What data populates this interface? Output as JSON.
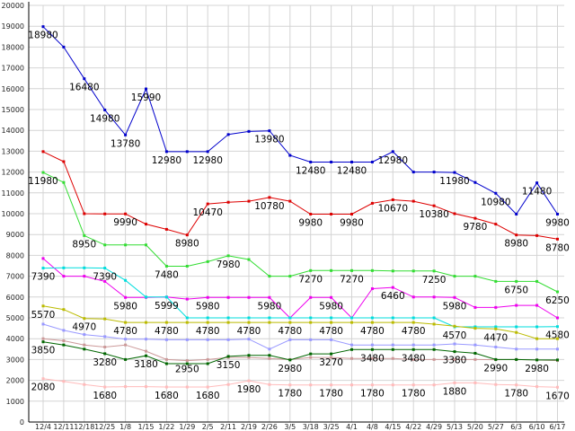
{
  "chart_data": {
    "type": "line",
    "title": "",
    "xlabel": "",
    "ylabel": "",
    "ylim": [
      0,
      20000
    ],
    "y_ticks": [
      0,
      1000,
      2000,
      3000,
      4000,
      5000,
      6000,
      7000,
      8000,
      9000,
      10000,
      11000,
      12000,
      13000,
      14000,
      15000,
      16000,
      17000,
      18000,
      19000,
      20000
    ],
    "grid": true,
    "categories": [
      "12/4",
      "12/11",
      "12/18",
      "12/25",
      "1/8",
      "1/15",
      "1/22",
      "1/29",
      "2/5",
      "2/11",
      "2/19",
      "2/26",
      "3/5",
      "3/18",
      "3/25",
      "4/1",
      "4/8",
      "4/15",
      "4/22",
      "4/29",
      "5/13",
      "5/20",
      "5/27",
      "6/3",
      "6/10",
      "6/17"
    ],
    "series": [
      {
        "color": "#0000cc",
        "values": [
          18980,
          18000,
          16480,
          14980,
          13780,
          15990,
          12980,
          12980,
          12980,
          13800,
          13950,
          13980,
          12800,
          12480,
          12480,
          12480,
          12480,
          12980,
          12000,
          12000,
          11980,
          11500,
          10980,
          9980,
          11480,
          9980
        ]
      },
      {
        "color": "#dd0000",
        "values": [
          12980,
          12500,
          10000,
          9990,
          9990,
          9500,
          9250,
          8980,
          10470,
          10550,
          10600,
          10780,
          10600,
          9980,
          9980,
          9980,
          10500,
          10670,
          10600,
          10380,
          10000,
          9780,
          9500,
          8980,
          8950,
          8780
        ]
      },
      {
        "color": "#33dd33",
        "values": [
          11980,
          11500,
          8950,
          8500,
          8500,
          8500,
          7480,
          7480,
          7700,
          7980,
          7800,
          7000,
          7000,
          7270,
          7270,
          7270,
          7270,
          7250,
          7250,
          7250,
          7000,
          7000,
          6750,
          6750,
          6750,
          6250
        ]
      },
      {
        "color": "#ee00ee",
        "values": [
          7850,
          7000,
          7000,
          6750,
          5980,
          5980,
          5999,
          5900,
          5980,
          5980,
          5980,
          5980,
          5000,
          5980,
          5980,
          5000,
          6400,
          6460,
          6000,
          6000,
          5980,
          5500,
          5500,
          5600,
          5600,
          5000
        ]
      },
      {
        "color": "#00dddd",
        "values": [
          7390,
          7400,
          7400,
          7390,
          6800,
          6000,
          5999,
          5000,
          5000,
          5000,
          5000,
          5000,
          5000,
          5000,
          5000,
          5000,
          5000,
          5000,
          5000,
          5000,
          4570,
          4570,
          4570,
          4570,
          4570,
          4580
        ]
      },
      {
        "color": "#bbbb00",
        "values": [
          5570,
          5400,
          4970,
          4950,
          4780,
          4780,
          4780,
          4780,
          4780,
          4780,
          4780,
          4780,
          4780,
          4780,
          4780,
          4780,
          4780,
          4780,
          4780,
          4700,
          4600,
          4500,
          4470,
          4300,
          4000,
          4000
        ]
      },
      {
        "color": "#9999ff",
        "values": [
          4700,
          4400,
          4200,
          4100,
          3980,
          3980,
          3950,
          3950,
          3950,
          3950,
          3980,
          3500,
          3950,
          3950,
          3950,
          3700,
          3700,
          3700,
          3700,
          3700,
          3750,
          3700,
          3600,
          3500,
          3500,
          3500
        ]
      },
      {
        "color": "#cc9999",
        "values": [
          4000,
          3900,
          3700,
          3600,
          3700,
          3400,
          3000,
          2950,
          3000,
          3100,
          3100,
          3050,
          3000,
          3100,
          3100,
          3050,
          3050,
          3050,
          3000,
          3000,
          3000,
          3000,
          2990,
          3000,
          2980,
          2950
        ]
      },
      {
        "color": "#006600",
        "values": [
          3850,
          3700,
          3500,
          3280,
          3000,
          3180,
          2800,
          2800,
          2800,
          3150,
          3200,
          3200,
          2980,
          3270,
          3270,
          3480,
          3480,
          3480,
          3480,
          3480,
          3380,
          3300,
          3000,
          3000,
          2980,
          2980
        ]
      },
      {
        "color": "#ffbbbb",
        "values": [
          2080,
          1950,
          1800,
          1680,
          1700,
          1700,
          1680,
          1680,
          1680,
          1800,
          1980,
          1800,
          1780,
          1780,
          1780,
          1780,
          1780,
          1780,
          1780,
          1780,
          1880,
          1880,
          1800,
          1780,
          1700,
          1670
        ]
      }
    ],
    "data_labels": [
      {
        "text": "18980",
        "x": 0,
        "value": 18980
      },
      {
        "text": "16480",
        "x": 2,
        "value": 16480
      },
      {
        "text": "14980",
        "x": 3,
        "value": 14980
      },
      {
        "text": "13780",
        "x": 4,
        "value": 13780
      },
      {
        "text": "15990",
        "x": 5,
        "value": 15990
      },
      {
        "text": "12980",
        "x": 6,
        "value": 12980
      },
      {
        "text": "12980",
        "x": 8,
        "value": 12980
      },
      {
        "text": "13980",
        "x": 11,
        "value": 13980
      },
      {
        "text": "12480",
        "x": 13,
        "value": 12480
      },
      {
        "text": "12480",
        "x": 15,
        "value": 12480
      },
      {
        "text": "12980",
        "x": 17,
        "value": 12980
      },
      {
        "text": "11980",
        "x": 20,
        "value": 11980
      },
      {
        "text": "10980",
        "x": 22,
        "value": 10980
      },
      {
        "text": "11480",
        "x": 24,
        "value": 11480
      },
      {
        "text": "9980",
        "x": 25,
        "value": 9980
      },
      {
        "text": "11980",
        "x": 0,
        "value": 11980
      },
      {
        "text": "9990",
        "x": 4,
        "value": 9990
      },
      {
        "text": "8980",
        "x": 7,
        "value": 8980
      },
      {
        "text": "10470",
        "x": 8,
        "value": 10470
      },
      {
        "text": "10780",
        "x": 11,
        "value": 10780
      },
      {
        "text": "9980",
        "x": 13,
        "value": 9980
      },
      {
        "text": "9980",
        "x": 15,
        "value": 9980
      },
      {
        "text": "10670",
        "x": 17,
        "value": 10670
      },
      {
        "text": "10380",
        "x": 19,
        "value": 10380
      },
      {
        "text": "9780",
        "x": 21,
        "value": 9780
      },
      {
        "text": "8980",
        "x": 23,
        "value": 8980
      },
      {
        "text": "8780",
        "x": 25,
        "value": 8780
      },
      {
        "text": "8950",
        "x": 2,
        "value": 8950
      },
      {
        "text": "7480",
        "x": 6,
        "value": 7480
      },
      {
        "text": "7980",
        "x": 9,
        "value": 7980
      },
      {
        "text": "7270",
        "x": 13,
        "value": 7270
      },
      {
        "text": "7270",
        "x": 15,
        "value": 7270
      },
      {
        "text": "7250",
        "x": 19,
        "value": 7250
      },
      {
        "text": "6750",
        "x": 23,
        "value": 6750
      },
      {
        "text": "6250",
        "x": 25,
        "value": 6250
      },
      {
        "text": "7390",
        "x": 0,
        "value": 7390
      },
      {
        "text": "7390",
        "x": 3,
        "value": 7390
      },
      {
        "text": "5980",
        "x": 4,
        "value": 5980
      },
      {
        "text": "5999",
        "x": 6,
        "value": 5999
      },
      {
        "text": "5980",
        "x": 8,
        "value": 5980
      },
      {
        "text": "5980",
        "x": 11,
        "value": 5980
      },
      {
        "text": "5980",
        "x": 14,
        "value": 5980
      },
      {
        "text": "6460",
        "x": 17,
        "value": 6460
      },
      {
        "text": "5980",
        "x": 20,
        "value": 5980
      },
      {
        "text": "5570",
        "x": 0,
        "value": 5570
      },
      {
        "text": "4970",
        "x": 2,
        "value": 4970
      },
      {
        "text": "4780",
        "x": 4,
        "value": 4780
      },
      {
        "text": "4780",
        "x": 6,
        "value": 4780
      },
      {
        "text": "4780",
        "x": 8,
        "value": 4780
      },
      {
        "text": "4780",
        "x": 10,
        "value": 4780
      },
      {
        "text": "4780",
        "x": 12,
        "value": 4780
      },
      {
        "text": "4780",
        "x": 14,
        "value": 4780
      },
      {
        "text": "4780",
        "x": 16,
        "value": 4780
      },
      {
        "text": "4780",
        "x": 18,
        "value": 4780
      },
      {
        "text": "4570",
        "x": 20,
        "value": 4570
      },
      {
        "text": "4470",
        "x": 22,
        "value": 4470
      },
      {
        "text": "4580",
        "x": 25,
        "value": 4580
      },
      {
        "text": "3850",
        "x": 0,
        "value": 3850
      },
      {
        "text": "3280",
        "x": 3,
        "value": 3280
      },
      {
        "text": "3180",
        "x": 5,
        "value": 3180
      },
      {
        "text": "2950",
        "x": 7,
        "value": 2950
      },
      {
        "text": "3150",
        "x": 9,
        "value": 3150
      },
      {
        "text": "2980",
        "x": 12,
        "value": 2980
      },
      {
        "text": "3270",
        "x": 14,
        "value": 3270
      },
      {
        "text": "3480",
        "x": 16,
        "value": 3480
      },
      {
        "text": "3480",
        "x": 18,
        "value": 3480
      },
      {
        "text": "3380",
        "x": 20,
        "value": 3380
      },
      {
        "text": "2990",
        "x": 22,
        "value": 2990
      },
      {
        "text": "2980",
        "x": 24,
        "value": 2980
      },
      {
        "text": "2080",
        "x": 0,
        "value": 2080
      },
      {
        "text": "1680",
        "x": 3,
        "value": 1680
      },
      {
        "text": "1680",
        "x": 6,
        "value": 1680
      },
      {
        "text": "1680",
        "x": 8,
        "value": 1680
      },
      {
        "text": "1980",
        "x": 10,
        "value": 1980
      },
      {
        "text": "1780",
        "x": 12,
        "value": 1780
      },
      {
        "text": "1780",
        "x": 14,
        "value": 1780
      },
      {
        "text": "1780",
        "x": 16,
        "value": 1780
      },
      {
        "text": "1780",
        "x": 18,
        "value": 1780
      },
      {
        "text": "1880",
        "x": 20,
        "value": 1880
      },
      {
        "text": "1780",
        "x": 23,
        "value": 1780
      },
      {
        "text": "1670",
        "x": 25,
        "value": 1670
      }
    ]
  }
}
